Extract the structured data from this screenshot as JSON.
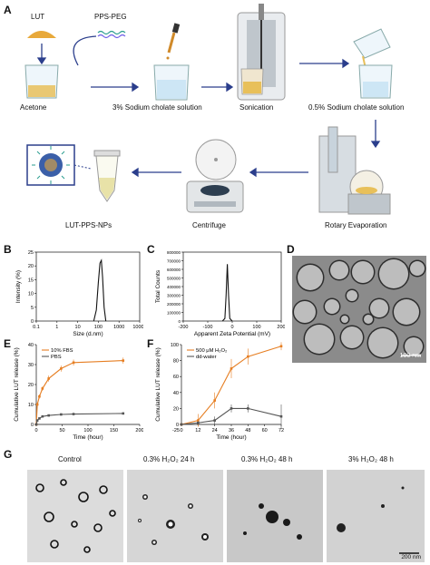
{
  "panels": {
    "A": "A",
    "B": "B",
    "C": "C",
    "D": "D",
    "E": "E",
    "F": "F",
    "G": "G"
  },
  "schematic": {
    "lut_label": "LUT",
    "ppspeg_label": "PPS-PEG",
    "steps": [
      "Acetone",
      "3% Sodium cholate solution",
      "Sonication",
      "0.5% Sodium cholate solution",
      "Rotary Evaporation",
      "Centrifuge",
      "LUT-PPS-NPs"
    ],
    "colors": {
      "arrow": "#2b3e8c",
      "lut": "#e8a93a",
      "water": "#cde6f5",
      "nanoparticle": "#3b5fa8"
    }
  },
  "scalebars": {
    "D": "100 nm",
    "G": "200 nm"
  },
  "G_titles": [
    "Control",
    "0.3% H₂O₂ 24 h",
    "0.3% H₂O₂ 48 h",
    "3% H₂O₂ 48 h"
  ],
  "chart_data": [
    {
      "panel": "B",
      "type": "line",
      "xscale": "log",
      "xlabel": "Size (d.nm)",
      "ylabel": "Intensity (%)",
      "xticks": [
        "0.1",
        "1",
        "10",
        "100",
        "1000",
        "10000"
      ],
      "yticks": [
        "0",
        "5",
        "10",
        "15",
        "20",
        "25"
      ],
      "xlim": [
        0.1,
        10000
      ],
      "ylim": [
        0,
        25
      ],
      "series": [
        {
          "x": [
            60,
            80,
            100,
            120,
            140,
            160,
            190,
            230
          ],
          "y": [
            0,
            4,
            14,
            21,
            22,
            16,
            5,
            0
          ]
        }
      ],
      "color": "#111111"
    },
    {
      "panel": "C",
      "type": "line",
      "xlabel": "Apparent Zeta Potential (mV)",
      "ylabel": "Total Counts",
      "xticks": [
        "-200",
        "-100",
        "0",
        "100",
        "200"
      ],
      "yticks": [
        "0",
        "100000",
        "200000",
        "300000",
        "400000",
        "500000",
        "600000",
        "700000",
        "800000"
      ],
      "xlim": [
        -200,
        200
      ],
      "ylim": [
        0,
        800000
      ],
      "series": [
        {
          "x": [
            -40,
            -30,
            -25,
            -20,
            -15,
            -10,
            0
          ],
          "y": [
            0,
            30000,
            300000,
            660000,
            300000,
            30000,
            0
          ]
        }
      ],
      "color": "#111111"
    },
    {
      "panel": "E",
      "type": "line",
      "xlabel": "Time (hour)",
      "ylabel": "Cumulative LUT release (%)",
      "xticks": [
        "0",
        "50",
        "100",
        "150",
        "200"
      ],
      "yticks": [
        "0",
        "10",
        "20",
        "30",
        "40"
      ],
      "xlim": [
        0,
        200
      ],
      "ylim": [
        0,
        40
      ],
      "series": [
        {
          "name": "10% FBS",
          "color": "#e67e22",
          "x": [
            0,
            2,
            6,
            12,
            24,
            48,
            72,
            168
          ],
          "y": [
            0,
            10,
            14,
            18,
            23,
            28,
            31,
            32
          ],
          "err": [
            0,
            1,
            1,
            1,
            1.5,
            1.5,
            1.5,
            1.5
          ]
        },
        {
          "name": "PBS",
          "color": "#555555",
          "x": [
            0,
            2,
            6,
            12,
            24,
            48,
            72,
            168
          ],
          "y": [
            0,
            2,
            3,
            4,
            4.5,
            5,
            5.2,
            5.5
          ],
          "err": [
            0,
            0.5,
            0.5,
            0.5,
            0.5,
            0.5,
            0.5,
            0.5
          ]
        }
      ]
    },
    {
      "panel": "F",
      "type": "line",
      "xlabel": "Time (hour)",
      "ylabel": "Cumulative LUT release (%)",
      "xticks": [
        "0",
        "12",
        "24",
        "36",
        "48",
        "60",
        "72"
      ],
      "xtick_prefix": "-25",
      "yticks": [
        "0",
        "20",
        "40",
        "60",
        "80",
        "100"
      ],
      "xlim": [
        0,
        72
      ],
      "ylim": [
        0,
        100
      ],
      "series": [
        {
          "name": "500 μM H₂O₂",
          "color": "#e67e22",
          "x": [
            0,
            12,
            24,
            36,
            48,
            72
          ],
          "y": [
            0,
            5,
            30,
            70,
            85,
            98
          ],
          "err": [
            0,
            8,
            10,
            12,
            10,
            5
          ]
        },
        {
          "name": "dd-water",
          "color": "#555555",
          "x": [
            0,
            12,
            24,
            36,
            48,
            72
          ],
          "y": [
            0,
            2,
            5,
            20,
            20,
            10
          ],
          "err": [
            0,
            2,
            5,
            5,
            5,
            15
          ]
        }
      ]
    }
  ]
}
